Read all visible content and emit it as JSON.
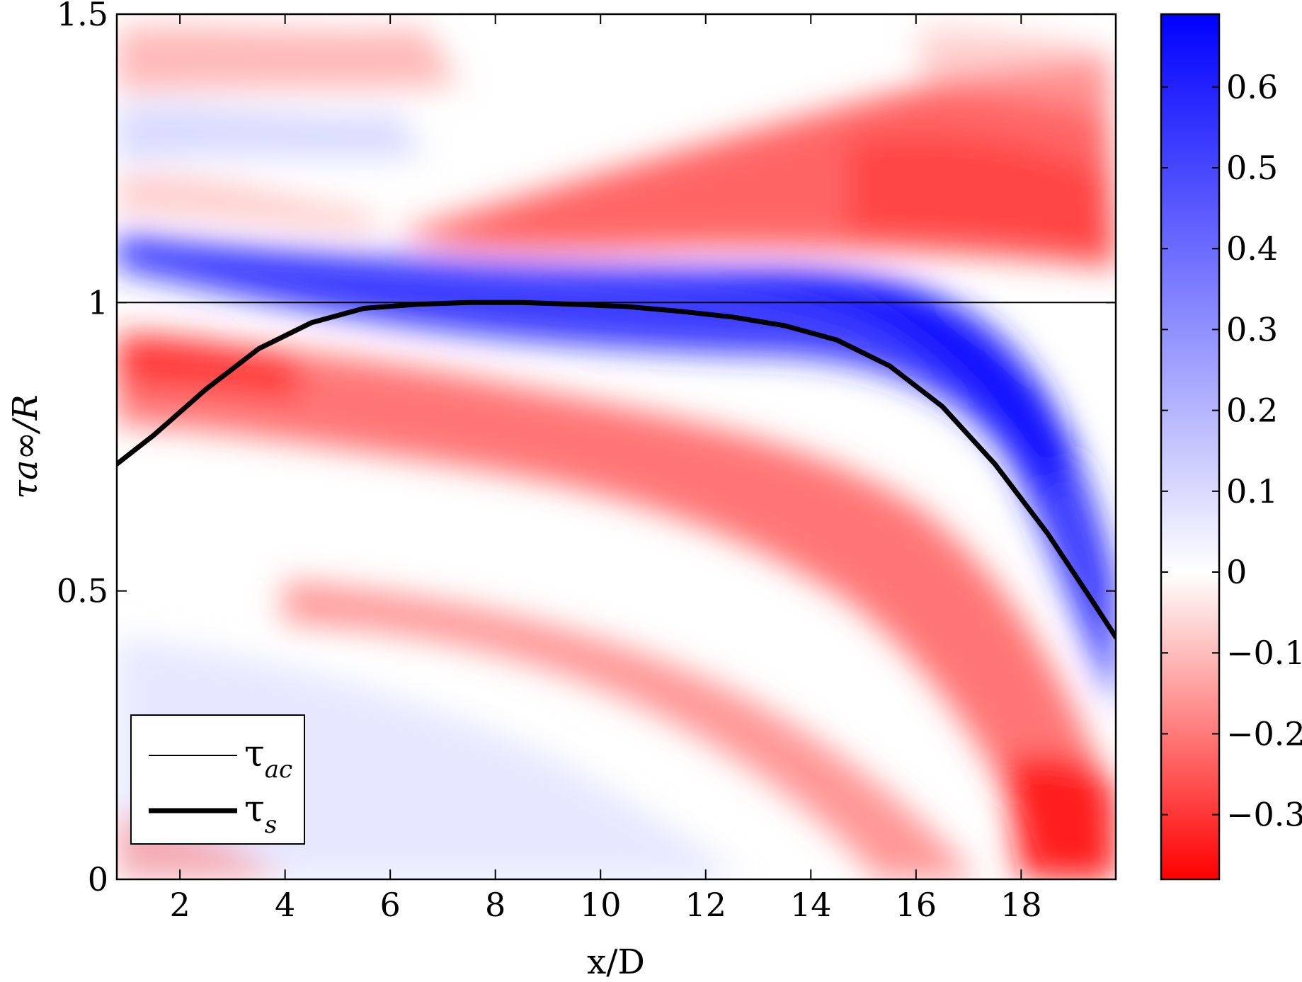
{
  "chart_data": {
    "type": "heatmap",
    "title": "",
    "xlabel": "x/D",
    "ylabel": "τa∞/R",
    "xlim": [
      0.8,
      19.8
    ],
    "ylim": [
      0,
      1.5
    ],
    "x_ticks": [
      2,
      4,
      6,
      8,
      10,
      12,
      14,
      16,
      18
    ],
    "y_ticks": [
      0,
      0.5,
      1,
      1.5
    ],
    "y_tick_labels": [
      "0",
      "0.5",
      "1",
      "1.5"
    ],
    "colorbar": {
      "min": -0.38,
      "max": 0.69,
      "ticks": [
        -0.3,
        -0.2,
        -0.1,
        0,
        0.1,
        0.2,
        0.3,
        0.4,
        0.5,
        0.6
      ],
      "tick_labels": [
        "−0.3",
        "−0.2",
        "−0.1",
        "0",
        "0.1",
        "0.2",
        "0.3",
        "0.4",
        "0.5",
        "0.6"
      ],
      "colors": {
        "negative": "#ff0000",
        "zero": "#ffffff",
        "positive": "#0000ff"
      }
    },
    "series": [
      {
        "name": "τac",
        "style": "thin",
        "x": [
          0.8,
          19.8
        ],
        "y": [
          1.0,
          1.0
        ]
      },
      {
        "name": "τs",
        "style": "thick",
        "x": [
          0.8,
          1.5,
          2.5,
          3.5,
          4.5,
          5.5,
          6.5,
          7.5,
          8.5,
          9.5,
          10.5,
          11.5,
          12.5,
          13.5,
          14.5,
          15.5,
          16.5,
          17.5,
          18.5,
          19.3,
          19.8
        ],
        "y": [
          0.72,
          0.77,
          0.85,
          0.92,
          0.965,
          0.99,
          0.997,
          1.0,
          1.0,
          0.997,
          0.993,
          0.985,
          0.975,
          0.96,
          0.935,
          0.89,
          0.82,
          0.72,
          0.6,
          0.49,
          0.42
        ]
      }
    ],
    "legend": {
      "position": "bottom-left",
      "entries": [
        {
          "label": "τ",
          "subscript": "ac"
        },
        {
          "label": "τ",
          "subscript": "s"
        }
      ]
    }
  }
}
